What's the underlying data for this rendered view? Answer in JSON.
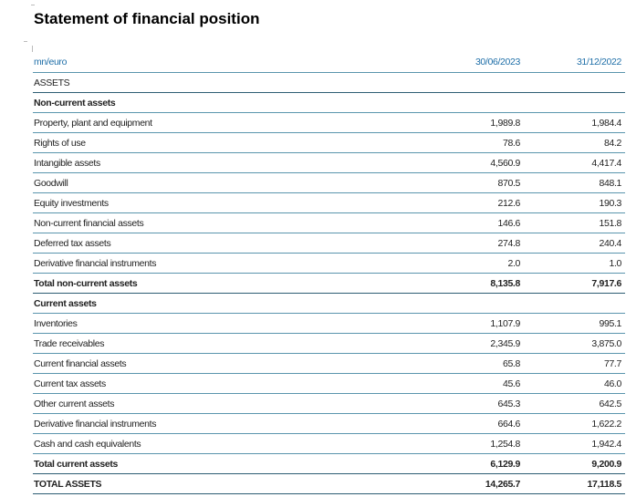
{
  "title": "Statement of financial position",
  "header": {
    "unit": "mn/euro",
    "col1": "30/06/2023",
    "col2": "31/12/2022"
  },
  "assets_label": "ASSETS",
  "noncurrent": {
    "heading": "Non-current assets",
    "rows": [
      {
        "label": "Property, plant and equipment",
        "v1": "1,989.8",
        "v2": "1,984.4"
      },
      {
        "label": "Rights of use",
        "v1": "78.6",
        "v2": "84.2"
      },
      {
        "label": "Intangible assets",
        "v1": "4,560.9",
        "v2": "4,417.4"
      },
      {
        "label": "Goodwill",
        "v1": "870.5",
        "v2": "848.1"
      },
      {
        "label": "Equity investments",
        "v1": "212.6",
        "v2": "190.3"
      },
      {
        "label": "Non-current financial assets",
        "v1": "146.6",
        "v2": "151.8"
      },
      {
        "label": "Deferred tax assets",
        "v1": "274.8",
        "v2": "240.4"
      },
      {
        "label": "Derivative financial instruments",
        "v1": "2.0",
        "v2": "1.0"
      }
    ],
    "total": {
      "label": "Total non-current assets",
      "v1": "8,135.8",
      "v2": "7,917.6"
    }
  },
  "current": {
    "heading": "Current assets",
    "rows": [
      {
        "label": "Inventories",
        "v1": "1,107.9",
        "v2": "995.1"
      },
      {
        "label": "Trade receivables",
        "v1": "2,345.9",
        "v2": "3,875.0"
      },
      {
        "label": "Current financial assets",
        "v1": "65.8",
        "v2": "77.7"
      },
      {
        "label": "Current tax assets",
        "v1": "45.6",
        "v2": "46.0"
      },
      {
        "label": "Other current assets",
        "v1": "645.3",
        "v2": "642.5"
      },
      {
        "label": "Derivative financial instruments",
        "v1": "664.6",
        "v2": "1,622.2"
      },
      {
        "label": "Cash and cash equivalents",
        "v1": "1,254.8",
        "v2": "1,942.4"
      }
    ],
    "total": {
      "label": "Total current assets",
      "v1": "6,129.9",
      "v2": "9,200.9"
    }
  },
  "grand_total": {
    "label": "TOTAL ASSETS",
    "v1": "14,265.7",
    "v2": "17,118.5"
  }
}
